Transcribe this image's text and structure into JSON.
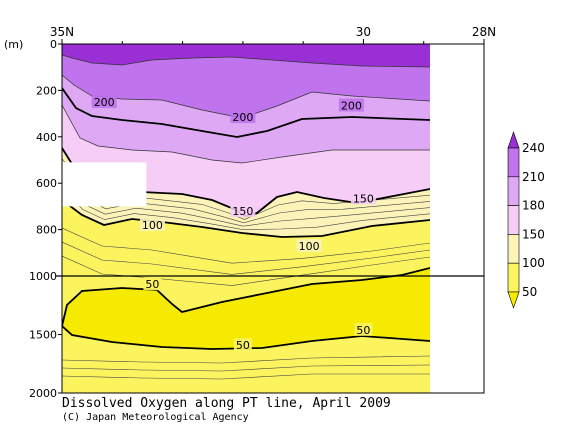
{
  "chart_data": {
    "type": "contour",
    "title": "Dissolved Oxygen along PT line, April 2009",
    "credit": "(C) Japan Meteorological Agency",
    "x_axis": {
      "ticks": [
        {
          "lat": 35,
          "label": "35N"
        },
        {
          "lat": 30,
          "label": "30"
        },
        {
          "lat": 28,
          "label": "28N"
        }
      ],
      "range": [
        35,
        28
      ],
      "data_extent": [
        35,
        29.0
      ]
    },
    "y_axis": {
      "unit_label": "(m)",
      "upper_panel": {
        "range": [
          0,
          1000
        ],
        "ticks": [
          "0",
          "200",
          "400",
          "600",
          "800",
          "1000"
        ]
      },
      "lower_panel": {
        "range": [
          1000,
          2000
        ],
        "ticks": [
          "1500",
          "2000"
        ]
      },
      "inverted": true
    },
    "colorbar": {
      "levels": [
        "240",
        "210",
        "180",
        "150",
        "100",
        "50"
      ],
      "bands": [
        {
          "range": [
            240,
            260
          ],
          "color": "#9a2fd6"
        },
        {
          "range": [
            210,
            240
          ],
          "color": "#bf73ec"
        },
        {
          "range": [
            180,
            210
          ],
          "color": "#dea8f5"
        },
        {
          "range": [
            150,
            180
          ],
          "color": "#f6cdf6"
        },
        {
          "range": [
            100,
            150
          ],
          "color": "#fbf3b8"
        },
        {
          "range": [
            50,
            100
          ],
          "color": "#fbf45e"
        },
        {
          "range": [
            0,
            50
          ],
          "color": "#f6ea00"
        }
      ]
    },
    "contour_labels": [
      {
        "value": "200",
        "lat": 34.3,
        "depth": 250
      },
      {
        "value": "200",
        "lat": 32.0,
        "depth": 315
      },
      {
        "value": "200",
        "lat": 30.2,
        "depth": 265
      },
      {
        "value": "150",
        "lat": 32.0,
        "depth": 720
      },
      {
        "value": "150",
        "lat": 30.0,
        "depth": 665
      },
      {
        "value": "100",
        "lat": 33.5,
        "depth": 780
      },
      {
        "value": "100",
        "lat": 30.9,
        "depth": 870
      },
      {
        "value": "50",
        "lat": 33.5,
        "depth": 1070
      },
      {
        "value": "50",
        "lat": 32.0,
        "depth": 1590
      },
      {
        "value": "50",
        "lat": 30.0,
        "depth": 1460
      }
    ],
    "white_box": {
      "lat_range": [
        35,
        33.6
      ],
      "depth_range": [
        510,
        700
      ]
    }
  }
}
